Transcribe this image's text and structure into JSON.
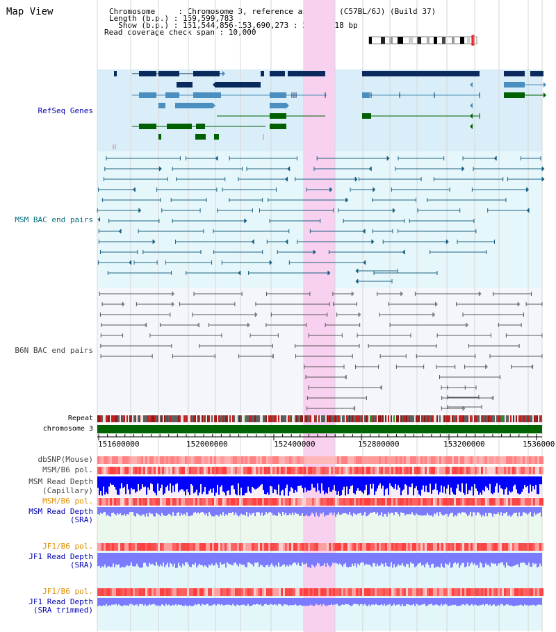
{
  "view": {
    "title": "Map View",
    "chromosome_line": "Chromosome     : Chromosome 3, reference assembly (C57BL/6J) (Build 37)",
    "length_line": "Length (b.p.) : 159,599,783",
    "show_line": "  Show (b.p.) : 151,544,856-153,690,273 : 2,145,418 bp",
    "coverage_line": "Read coverage check span : 10,000"
  },
  "tracks": {
    "refseq": "RefSeq Genes",
    "msm_bac": "MSM BAC end pairs",
    "b6n_bac": "B6N BAC end pairs",
    "repeat": "Repeat",
    "chromosome": "chromosome 3",
    "dbsnp": "dbSNP(Mouse)",
    "msm_b6_pol_1": "MSM/B6 pol.",
    "msm_depth_cap_1": "MSM Read Depth",
    "msm_depth_cap_2": "(Capillary)",
    "msm_b6_pol_2": "MSM/B6 pol.",
    "msm_depth_sra_1": "MSM Read Depth",
    "msm_depth_sra_2": "(SRA)",
    "jf1_b6_pol_1": "JF1/B6 pol.",
    "jf1_depth_sra_1": "JF1 Read Depth",
    "jf1_depth_sra_2": "(SRA)",
    "jf1_b6_pol_2": "JF1/B6 pol.",
    "jf1_depth_trim_1": "JF1 Read Depth",
    "jf1_depth_trim_2": "(SRA trimmed)"
  },
  "axis": {
    "ticks": [
      "151600000",
      "152000000",
      "152400000",
      "152800000",
      "153200000",
      "1536000"
    ]
  },
  "colors": {
    "refseq_bg": "#d9eef8",
    "msm_bg": "#e6f7fb",
    "b6n_bg": "#f4f6fb",
    "highlight": "#f8d0f0",
    "gene_dark": "#0a2a5e",
    "gene_mid": "#4a8fbf",
    "gene_green": "#005f00",
    "msm_line": "#1a6080",
    "b6n_line": "#555555",
    "label_blue": "#0000b0",
    "label_teal": "#007080",
    "label_orange": "#e09000",
    "depth_blue": "#0000ff",
    "depth_lav": "#7b7bff"
  }
}
